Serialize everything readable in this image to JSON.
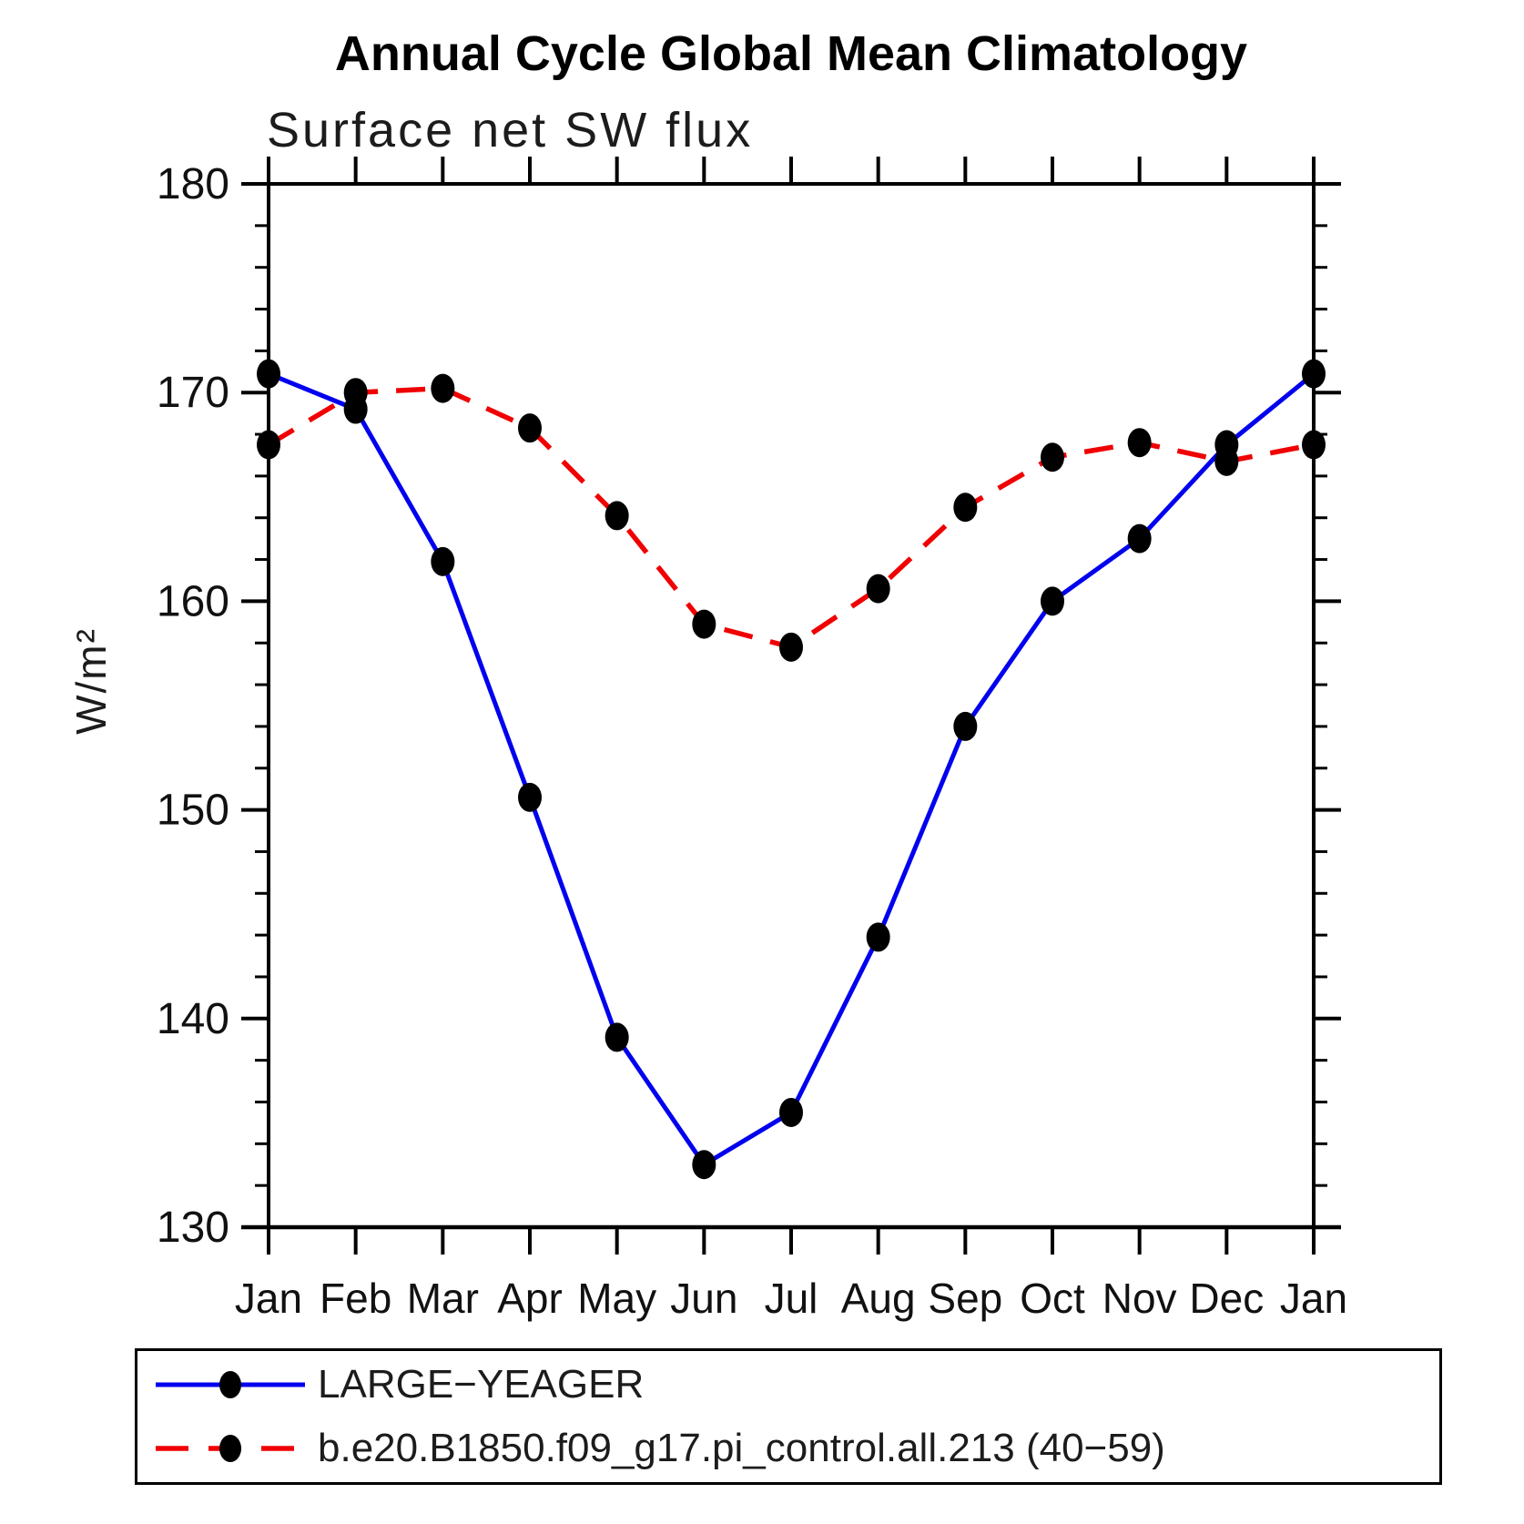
{
  "chart_data": {
    "type": "line",
    "title": "Annual Cycle Global Mean Climatology",
    "subtitle": "Surface net SW flux",
    "ylabel": "W/m²",
    "x_categories": [
      "Jan",
      "Feb",
      "Mar",
      "Apr",
      "May",
      "Jun",
      "Jul",
      "Aug",
      "Sep",
      "Oct",
      "Nov",
      "Dec",
      "Jan"
    ],
    "ylim": [
      130,
      180
    ],
    "y_major_ticks": [
      130,
      140,
      150,
      160,
      170,
      180
    ],
    "y_minor_step": 2,
    "grid": false,
    "legend_position": "bottom",
    "marker": "filled-oval",
    "marker_color": "#000000",
    "series": [
      {
        "name": "LARGE−YEAGER",
        "color": "#0000ee",
        "style": "solid",
        "values": [
          170.9,
          169.2,
          161.9,
          150.6,
          139.1,
          133.0,
          135.5,
          143.9,
          154.0,
          160.0,
          163.0,
          167.5,
          170.9
        ]
      },
      {
        "name": "b.e20.B1850.f09_g17.pi_control.all.213 (40−59)",
        "color": "#f00000",
        "style": "dashed",
        "values": [
          167.5,
          170.0,
          170.2,
          168.3,
          164.1,
          158.9,
          157.8,
          160.6,
          164.5,
          166.9,
          167.6,
          166.7,
          167.5
        ]
      }
    ]
  }
}
